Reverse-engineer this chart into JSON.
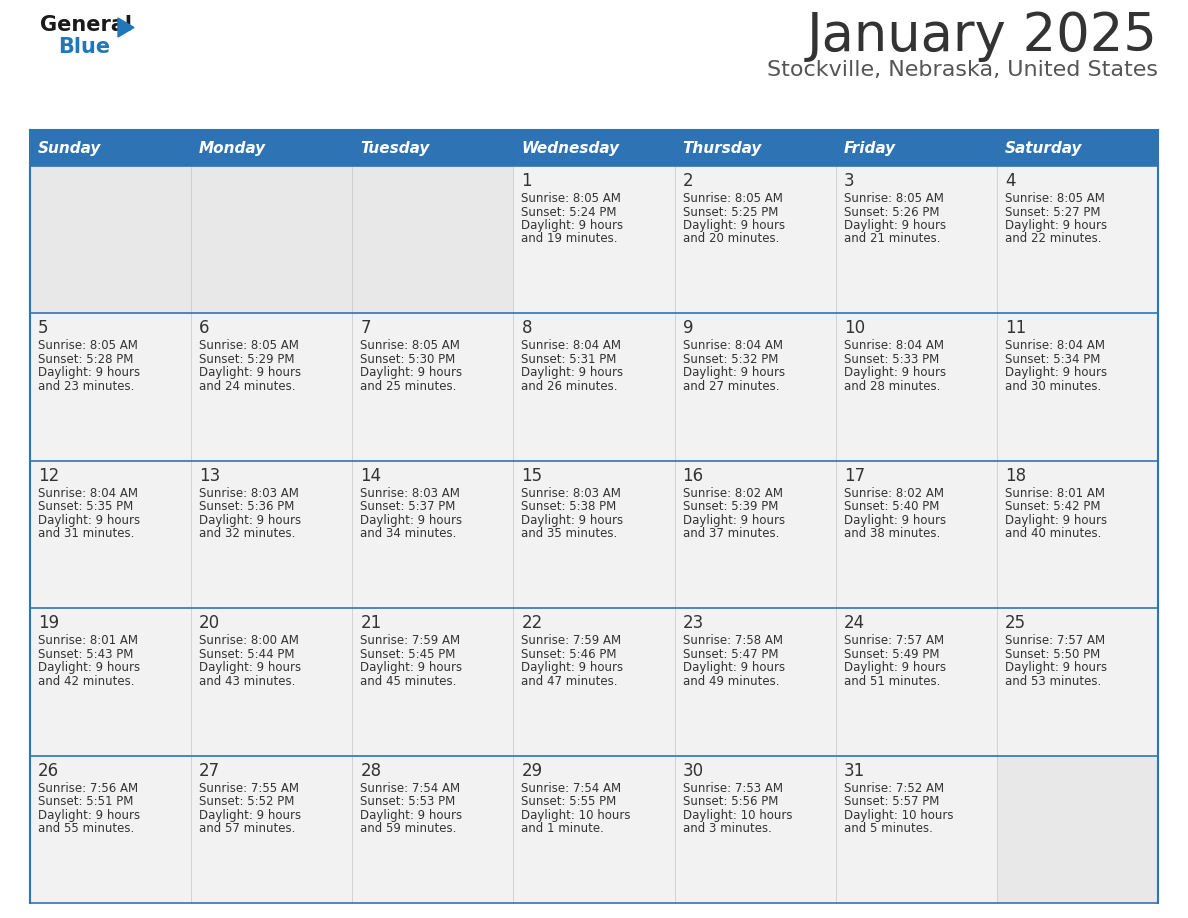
{
  "title": "January 2025",
  "subtitle": "Stockville, Nebraska, United States",
  "days_of_week": [
    "Sunday",
    "Monday",
    "Tuesday",
    "Wednesday",
    "Thursday",
    "Friday",
    "Saturday"
  ],
  "header_bg_color": "#2e74b5",
  "header_text_color": "#ffffff",
  "cell_bg_filled": "#f2f2f2",
  "cell_bg_empty": "#e8e8e8",
  "divider_color": "#2e74b5",
  "text_color": "#333333",
  "title_color": "#333333",
  "subtitle_color": "#555555",
  "logo_general_color": "#1a1a1a",
  "logo_blue_color": "#2277bb",
  "logo_triangle_color": "#2277bb",
  "calendar_data": [
    [
      {
        "day": null,
        "sunrise": null,
        "sunset": null,
        "daylight": null
      },
      {
        "day": null,
        "sunrise": null,
        "sunset": null,
        "daylight": null
      },
      {
        "day": null,
        "sunrise": null,
        "sunset": null,
        "daylight": null
      },
      {
        "day": 1,
        "sunrise": "8:05 AM",
        "sunset": "5:24 PM",
        "daylight": "9 hours\nand 19 minutes."
      },
      {
        "day": 2,
        "sunrise": "8:05 AM",
        "sunset": "5:25 PM",
        "daylight": "9 hours\nand 20 minutes."
      },
      {
        "day": 3,
        "sunrise": "8:05 AM",
        "sunset": "5:26 PM",
        "daylight": "9 hours\nand 21 minutes."
      },
      {
        "day": 4,
        "sunrise": "8:05 AM",
        "sunset": "5:27 PM",
        "daylight": "9 hours\nand 22 minutes."
      }
    ],
    [
      {
        "day": 5,
        "sunrise": "8:05 AM",
        "sunset": "5:28 PM",
        "daylight": "9 hours\nand 23 minutes."
      },
      {
        "day": 6,
        "sunrise": "8:05 AM",
        "sunset": "5:29 PM",
        "daylight": "9 hours\nand 24 minutes."
      },
      {
        "day": 7,
        "sunrise": "8:05 AM",
        "sunset": "5:30 PM",
        "daylight": "9 hours\nand 25 minutes."
      },
      {
        "day": 8,
        "sunrise": "8:04 AM",
        "sunset": "5:31 PM",
        "daylight": "9 hours\nand 26 minutes."
      },
      {
        "day": 9,
        "sunrise": "8:04 AM",
        "sunset": "5:32 PM",
        "daylight": "9 hours\nand 27 minutes."
      },
      {
        "day": 10,
        "sunrise": "8:04 AM",
        "sunset": "5:33 PM",
        "daylight": "9 hours\nand 28 minutes."
      },
      {
        "day": 11,
        "sunrise": "8:04 AM",
        "sunset": "5:34 PM",
        "daylight": "9 hours\nand 30 minutes."
      }
    ],
    [
      {
        "day": 12,
        "sunrise": "8:04 AM",
        "sunset": "5:35 PM",
        "daylight": "9 hours\nand 31 minutes."
      },
      {
        "day": 13,
        "sunrise": "8:03 AM",
        "sunset": "5:36 PM",
        "daylight": "9 hours\nand 32 minutes."
      },
      {
        "day": 14,
        "sunrise": "8:03 AM",
        "sunset": "5:37 PM",
        "daylight": "9 hours\nand 34 minutes."
      },
      {
        "day": 15,
        "sunrise": "8:03 AM",
        "sunset": "5:38 PM",
        "daylight": "9 hours\nand 35 minutes."
      },
      {
        "day": 16,
        "sunrise": "8:02 AM",
        "sunset": "5:39 PM",
        "daylight": "9 hours\nand 37 minutes."
      },
      {
        "day": 17,
        "sunrise": "8:02 AM",
        "sunset": "5:40 PM",
        "daylight": "9 hours\nand 38 minutes."
      },
      {
        "day": 18,
        "sunrise": "8:01 AM",
        "sunset": "5:42 PM",
        "daylight": "9 hours\nand 40 minutes."
      }
    ],
    [
      {
        "day": 19,
        "sunrise": "8:01 AM",
        "sunset": "5:43 PM",
        "daylight": "9 hours\nand 42 minutes."
      },
      {
        "day": 20,
        "sunrise": "8:00 AM",
        "sunset": "5:44 PM",
        "daylight": "9 hours\nand 43 minutes."
      },
      {
        "day": 21,
        "sunrise": "7:59 AM",
        "sunset": "5:45 PM",
        "daylight": "9 hours\nand 45 minutes."
      },
      {
        "day": 22,
        "sunrise": "7:59 AM",
        "sunset": "5:46 PM",
        "daylight": "9 hours\nand 47 minutes."
      },
      {
        "day": 23,
        "sunrise": "7:58 AM",
        "sunset": "5:47 PM",
        "daylight": "9 hours\nand 49 minutes."
      },
      {
        "day": 24,
        "sunrise": "7:57 AM",
        "sunset": "5:49 PM",
        "daylight": "9 hours\nand 51 minutes."
      },
      {
        "day": 25,
        "sunrise": "7:57 AM",
        "sunset": "5:50 PM",
        "daylight": "9 hours\nand 53 minutes."
      }
    ],
    [
      {
        "day": 26,
        "sunrise": "7:56 AM",
        "sunset": "5:51 PM",
        "daylight": "9 hours\nand 55 minutes."
      },
      {
        "day": 27,
        "sunrise": "7:55 AM",
        "sunset": "5:52 PM",
        "daylight": "9 hours\nand 57 minutes."
      },
      {
        "day": 28,
        "sunrise": "7:54 AM",
        "sunset": "5:53 PM",
        "daylight": "9 hours\nand 59 minutes."
      },
      {
        "day": 29,
        "sunrise": "7:54 AM",
        "sunset": "5:55 PM",
        "daylight": "10 hours\nand 1 minute."
      },
      {
        "day": 30,
        "sunrise": "7:53 AM",
        "sunset": "5:56 PM",
        "daylight": "10 hours\nand 3 minutes."
      },
      {
        "day": 31,
        "sunrise": "7:52 AM",
        "sunset": "5:57 PM",
        "daylight": "10 hours\nand 5 minutes."
      },
      {
        "day": null,
        "sunrise": null,
        "sunset": null,
        "daylight": null
      }
    ]
  ]
}
